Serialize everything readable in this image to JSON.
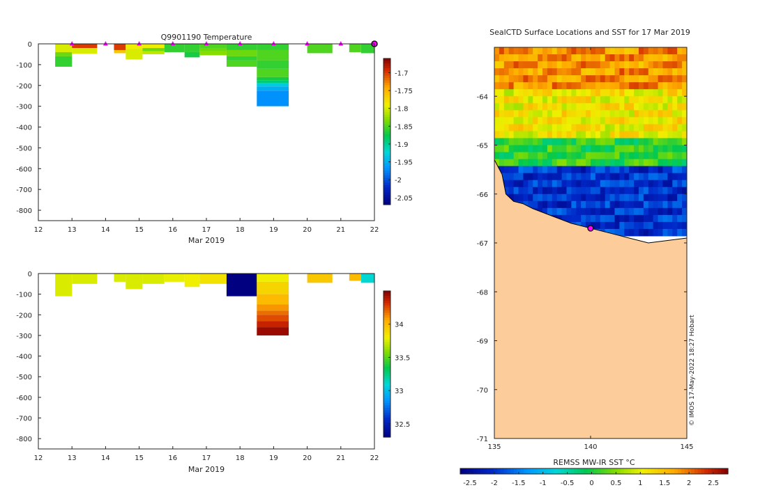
{
  "chart_data": [
    {
      "id": "temp-profile",
      "type": "heatmap",
      "title": "Q9901190  Temperature",
      "xlabel": "Mar 2019",
      "ylabel": "",
      "xlim": [
        12,
        22
      ],
      "ylim": [
        -850,
        0
      ],
      "xticks": [
        12,
        13,
        14,
        15,
        16,
        17,
        18,
        19,
        20,
        21,
        22
      ],
      "yticks": [
        0,
        -100,
        -200,
        -300,
        -400,
        -500,
        -600,
        -700,
        -800
      ],
      "colorbar": {
        "min": -2.07,
        "max": -1.66,
        "ticks": [
          -1.7,
          -1.75,
          -1.8,
          -1.85,
          -1.9,
          -1.95,
          -2,
          -2.05
        ]
      },
      "markers": {
        "x": [
          13,
          14,
          15,
          16,
          17,
          18,
          19,
          20,
          21
        ],
        "y": 0,
        "color": "#ff00ff"
      },
      "highlight": {
        "x": 22,
        "y": 0
      },
      "profiles": [
        {
          "x0": 12.5,
          "x1": 13.0,
          "bins": [
            [
              0,
              40,
              -1.8
            ],
            [
              40,
              60,
              -1.84
            ],
            [
              60,
              110,
              -1.86
            ]
          ]
        },
        {
          "x0": 13.0,
          "x1": 13.75,
          "bins": [
            [
              0,
              20,
              -1.7
            ],
            [
              20,
              47,
              -1.8
            ]
          ]
        },
        {
          "x0": 14.25,
          "x1": 14.6,
          "bins": [
            [
              0,
              30,
              -1.7
            ],
            [
              30,
              45,
              -1.76
            ]
          ]
        },
        {
          "x0": 14.6,
          "x1": 15.1,
          "bins": [
            [
              0,
              25,
              -1.79
            ],
            [
              25,
              75,
              -1.8
            ]
          ]
        },
        {
          "x0": 15.1,
          "x1": 15.75,
          "bins": [
            [
              0,
              20,
              -1.79
            ],
            [
              20,
              35,
              -1.84
            ],
            [
              35,
              50,
              -1.81
            ]
          ]
        },
        {
          "x0": 15.75,
          "x1": 16.35,
          "bins": [
            [
              0,
              40,
              -1.86
            ]
          ]
        },
        {
          "x0": 16.35,
          "x1": 16.8,
          "bins": [
            [
              0,
              40,
              -1.86
            ],
            [
              40,
              65,
              -1.87
            ]
          ]
        },
        {
          "x0": 16.8,
          "x1": 17.6,
          "bins": [
            [
              0,
              20,
              -1.85
            ],
            [
              20,
              35,
              -1.84
            ],
            [
              35,
              55,
              -1.83
            ]
          ]
        },
        {
          "x0": 17.6,
          "x1": 18.5,
          "bins": [
            [
              0,
              30,
              -1.86
            ],
            [
              30,
              60,
              -1.84
            ],
            [
              60,
              80,
              -1.86
            ],
            [
              80,
              110,
              -1.85
            ]
          ]
        },
        {
          "x0": 18.5,
          "x1": 19.45,
          "bins": [
            [
              0,
              30,
              -1.86
            ],
            [
              30,
              80,
              -1.85
            ],
            [
              80,
              120,
              -1.86
            ],
            [
              120,
              160,
              -1.85
            ],
            [
              160,
              175,
              -1.87
            ],
            [
              175,
              190,
              -1.89
            ],
            [
              190,
              205,
              -1.93
            ],
            [
              205,
              225,
              -1.95
            ],
            [
              225,
              300,
              -1.97
            ]
          ]
        },
        {
          "x0": 20.0,
          "x1": 20.75,
          "bins": [
            [
              0,
              45,
              -1.85
            ]
          ]
        },
        {
          "x0": 21.25,
          "x1": 21.6,
          "bins": [
            [
              0,
              40,
              -1.85
            ]
          ]
        },
        {
          "x0": 21.6,
          "x1": 22.0,
          "bins": [
            [
              0,
              45,
              -1.86
            ]
          ]
        }
      ]
    },
    {
      "id": "salinity-profile",
      "type": "heatmap",
      "title": "",
      "xlabel": "Mar 2019",
      "ylabel": "",
      "xlim": [
        12,
        22
      ],
      "ylim": [
        -850,
        0
      ],
      "xticks": [
        12,
        13,
        14,
        15,
        16,
        17,
        18,
        19,
        20,
        21,
        22
      ],
      "yticks": [
        0,
        -100,
        -200,
        -300,
        -400,
        -500,
        -600,
        -700,
        -800
      ],
      "colorbar": {
        "min": 32.3,
        "max": 34.5,
        "ticks": [
          34,
          33.5,
          33,
          32.5
        ]
      },
      "profiles": [
        {
          "x0": 12.5,
          "x1": 13.0,
          "bins": [
            [
              0,
              110,
              33.75
            ]
          ]
        },
        {
          "x0": 13.0,
          "x1": 13.75,
          "bins": [
            [
              0,
              50,
              33.75
            ]
          ]
        },
        {
          "x0": 14.25,
          "x1": 14.6,
          "bins": [
            [
              0,
              40,
              33.75
            ]
          ]
        },
        {
          "x0": 14.6,
          "x1": 15.1,
          "bins": [
            [
              0,
              75,
              33.75
            ]
          ]
        },
        {
          "x0": 15.1,
          "x1": 15.75,
          "bins": [
            [
              0,
              50,
              33.75
            ]
          ]
        },
        {
          "x0": 15.75,
          "x1": 16.35,
          "bins": [
            [
              0,
              40,
              33.78
            ]
          ]
        },
        {
          "x0": 16.35,
          "x1": 16.8,
          "bins": [
            [
              0,
              65,
              33.8
            ]
          ]
        },
        {
          "x0": 16.8,
          "x1": 17.6,
          "bins": [
            [
              0,
              50,
              33.85
            ]
          ]
        },
        {
          "x0": 17.6,
          "x1": 18.5,
          "bins": [
            [
              0,
              110,
              32.3
            ]
          ]
        },
        {
          "x0": 18.5,
          "x1": 19.45,
          "bins": [
            [
              0,
              40,
              33.8
            ],
            [
              40,
              100,
              33.9
            ],
            [
              100,
              150,
              34.0
            ],
            [
              150,
              180,
              34.1
            ],
            [
              180,
              200,
              34.18
            ],
            [
              200,
              230,
              34.25
            ],
            [
              230,
              260,
              34.35
            ],
            [
              260,
              300,
              34.45
            ]
          ]
        },
        {
          "x0": 20.0,
          "x1": 20.75,
          "bins": [
            [
              0,
              45,
              33.95
            ]
          ]
        },
        {
          "x0": 21.25,
          "x1": 21.6,
          "bins": [
            [
              0,
              35,
              34.0
            ]
          ]
        },
        {
          "x0": 21.6,
          "x1": 22.0,
          "bins": [
            [
              0,
              45,
              33.1
            ]
          ]
        }
      ]
    },
    {
      "id": "sst-map",
      "type": "heatmap",
      "title": "SealCTD Surface Locations and SST for 17 Mar 2019",
      "xlabel": "",
      "ylabel": "",
      "xlim": [
        135,
        145
      ],
      "ylim": [
        -71,
        -63
      ],
      "xticks": [
        135,
        140,
        145
      ],
      "yticks": [
        -64,
        -65,
        -66,
        -67,
        -68,
        -69,
        -70,
        -71
      ],
      "colorbar": {
        "label": "REMSS MW-IR SST °C",
        "min": -2.7,
        "max": 2.8,
        "ticks": [
          -2.5,
          -2,
          -1.5,
          -1,
          -0.5,
          0,
          0.5,
          1,
          1.5,
          2,
          2.5
        ]
      },
      "zones": [
        {
          "name": "warm-north",
          "lat": [
            -63.85,
            -63.0
          ],
          "sst": 1.8
        },
        {
          "name": "mid",
          "lat": [
            -64.9,
            -63.85
          ],
          "sst": 1.1
        },
        {
          "name": "transition",
          "lat": [
            -65.4,
            -64.9
          ],
          "sst": 0.1
        },
        {
          "name": "cold-band",
          "lat": [
            -66.8,
            -65.4
          ],
          "sst": -2.0
        }
      ],
      "location": {
        "lon": 140.0,
        "lat": -66.7
      },
      "credit": "© IMOS 17-May-2022 18:27 Hobart"
    }
  ]
}
